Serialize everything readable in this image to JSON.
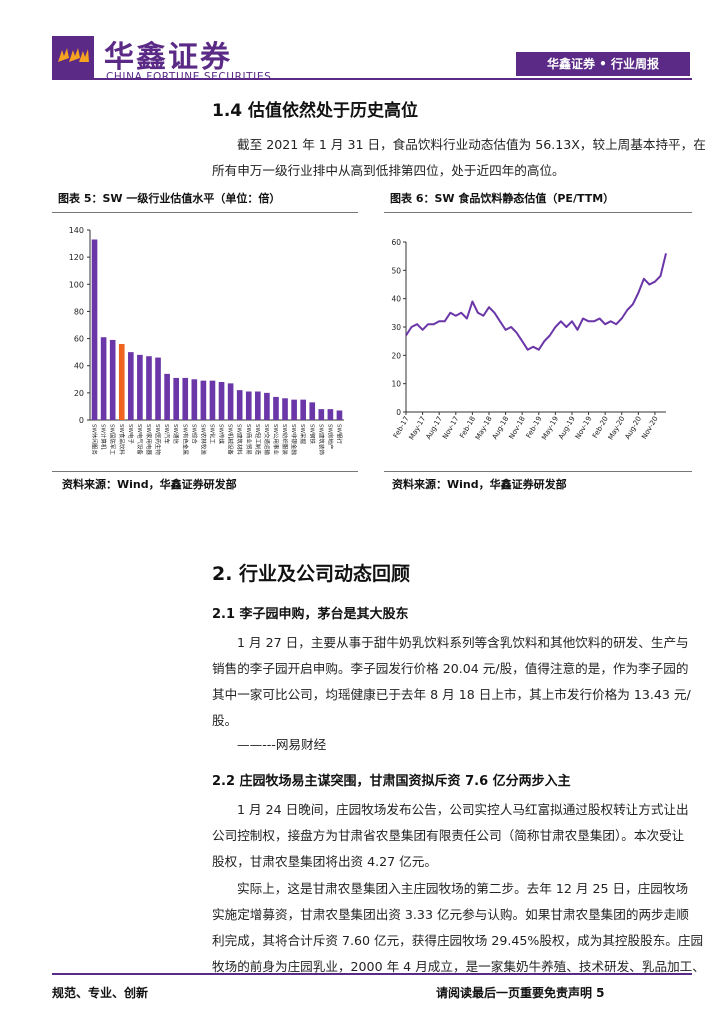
{
  "header": {
    "brand_cn": "华鑫证券",
    "brand_en": "CHINA FORTUNE SECURITIES",
    "tag": "华鑫证券 • 行业周报",
    "logo_icon": "fortune-logo-icon",
    "color": "#5a2a86"
  },
  "section_1_4": {
    "heading": "1.4 估值依然处于历史高位",
    "paragraph": [
      "截至 2021 年 1 月 31 日，食品饮料行业动态估值为 56.13X，较上周基本持平，在",
      "所有申万一级行业排中从高到低排第四位，处于近四年的高位。"
    ]
  },
  "figure5": {
    "title": "图表 5：SW 一级行业估值水平（单位：倍）",
    "source": "资料来源：Wind，华鑫证券研发部"
  },
  "figure6": {
    "title": "图表 6：SW 食品饮料静态估值（PE/TTM）",
    "source": "资料来源：Wind，华鑫证券研发部"
  },
  "section_2": {
    "heading": "2.  行业及公司动态回顾"
  },
  "section_2_1": {
    "heading": "2.1 李子园申购，茅台是其大股东",
    "paragraph": [
      "1 月 27 日，主要从事于甜牛奶乳饮料系列等含乳饮料和其他饮料的研发、生产与",
      "销售的李子园开启申购。李子园发行价格 20.04 元/股，值得注意的是，作为李子园的",
      "其中一家可比公司，均瑶健康已于去年 8 月 18 日上市，其上市发行价格为 13.43 元/",
      "股。"
    ],
    "source_note": "——---网易财经"
  },
  "section_2_2": {
    "heading": "2.2 庄园牧场易主谋突围，甘肃国资拟斥资 7.6 亿分两步入主",
    "paragraph1": [
      "1 月 24 日晚间，庄园牧场发布公告，公司实控人马红富拟通过股权转让方式让出",
      "公司控制权，接盘方为甘肃省农垦集团有限责任公司（简称甘肃农垦集团）。本次受让",
      "股权，甘肃农垦集团将出资 4.27 亿元。"
    ],
    "paragraph2": [
      "实际上，这是甘肃农垦集团入主庄园牧场的第二步。去年 12 月 25 日，庄园牧场",
      "实施定增募资，甘肃农垦集团出资 3.33 亿元参与认购。如果甘肃农垦集团的两步走顺",
      "利完成，其将合计斥资 7.60 亿元，获得庄园牧场 29.45%股权，成为其控股股东。庄园",
      "牧场的前身为庄园乳业，2000 年 4 月成立，是一家集奶牛养殖、技术研发、乳品加工、"
    ]
  },
  "footer": {
    "left": "规范、专业、创新",
    "right": "请阅读最后一页重要免责声明 5"
  },
  "chart_data": [
    {
      "type": "bar",
      "title": "图表 5：SW 一级行业估值水平（单位：倍）",
      "ylim": [
        0,
        140
      ],
      "yticks": [
        0,
        20,
        40,
        60,
        80,
        100,
        120,
        140
      ],
      "categories": [
        "SW休闲服务",
        "SW计算机",
        "SW国防军工",
        "SW食品饮料",
        "SW电子",
        "SW电气设备",
        "SW家用电器",
        "SW医药生物",
        "SW汽车",
        "SW通信",
        "SW有色金属",
        "SW综合",
        "SW农林牧渔",
        "SW化工",
        "SW传媒",
        "SW机械设备",
        "SW建筑材料",
        "SW商业贸易",
        "SW轻工制造",
        "SW交通运输",
        "SW公用事业",
        "SW纺织服装",
        "SW非银金融",
        "SW采掘",
        "SW钢铁",
        "SW建筑装饰",
        "SW房地产",
        "SW银行"
      ],
      "visible_tick_labels": [
        "SW休闲服务",
        "SW计算机",
        "SW国防军工",
        "SW食品饮料",
        "SW电子",
        "SW电气设备",
        "SW家用电器",
        "SW医药生物",
        "SW汽车",
        "SW通信",
        "SW有色金属",
        "SW综合",
        "SW农林牧渔",
        "SW化工",
        "SW传媒",
        "SW机械设备",
        "SW建筑材料",
        "SW商业贸易",
        "SW轻工制造",
        "SW交通运输",
        "SW公用事业",
        "SW纺织服装",
        "SW非银金融",
        "SW采掘",
        "SW钢铁",
        "SW建筑装饰",
        "SW房地产",
        "SW银行"
      ],
      "values": [
        133,
        61,
        59,
        56,
        50,
        48,
        47,
        46,
        34,
        31,
        31,
        30,
        29,
        29,
        28,
        27,
        22,
        21,
        21,
        20,
        17,
        16,
        15,
        15,
        13,
        8,
        8,
        7
      ],
      "highlight_index": 3,
      "bar_color": "#6a36a8",
      "highlight_color": "#f0641e",
      "grid": false,
      "legend": "none"
    },
    {
      "type": "line",
      "title": "图表 6：SW 食品饮料静态估值（PE/TTM）",
      "ylim": [
        0,
        60
      ],
      "yticks": [
        0,
        10,
        20,
        30,
        40,
        50,
        60
      ],
      "xticks": [
        "Feb-17",
        "May-17",
        "Aug-17",
        "Nov-17",
        "Feb-18",
        "May-18",
        "Aug-18",
        "Nov-18",
        "Feb-19",
        "May-19",
        "Aug-19",
        "Nov-19",
        "Feb-20",
        "May-20",
        "Aug-20",
        "Nov-20"
      ],
      "x_range": [
        "2017-02",
        "2021-01"
      ],
      "line_color": "#6a36a8",
      "series": [
        {
          "x": [
            "2017-02",
            "2017-03",
            "2017-04",
            "2017-05",
            "2017-06",
            "2017-07",
            "2017-08",
            "2017-09",
            "2017-10",
            "2017-11",
            "2017-12",
            "2018-01",
            "2018-02",
            "2018-03",
            "2018-04",
            "2018-05",
            "2018-06",
            "2018-07",
            "2018-08",
            "2018-09",
            "2018-10",
            "2018-11",
            "2018-12",
            "2019-01",
            "2019-02",
            "2019-03",
            "2019-04",
            "2019-05",
            "2019-06",
            "2019-07",
            "2019-08",
            "2019-09",
            "2019-10",
            "2019-11",
            "2019-12",
            "2020-01",
            "2020-02",
            "2020-03",
            "2020-04",
            "2020-05",
            "2020-06",
            "2020-07",
            "2020-08",
            "2020-09",
            "2020-10",
            "2020-11",
            "2020-12",
            "2021-01"
          ],
          "values": [
            27,
            30,
            31,
            29,
            31,
            31,
            32,
            32,
            35,
            34,
            35,
            33,
            39,
            35,
            34,
            37,
            35,
            32,
            29,
            30,
            28,
            25,
            22,
            23,
            22,
            25,
            27,
            30,
            32,
            30,
            32,
            29,
            33,
            32,
            32,
            33,
            31,
            32,
            31,
            33,
            36,
            38,
            42,
            47,
            45,
            46,
            48,
            56
          ]
        }
      ],
      "grid": false,
      "legend": "none"
    }
  ]
}
